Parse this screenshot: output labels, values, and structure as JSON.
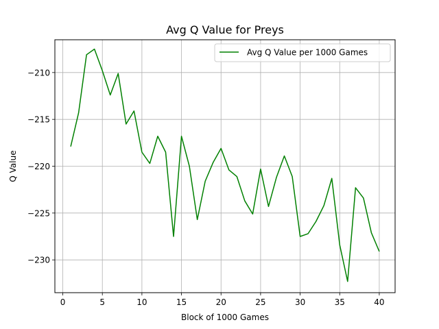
{
  "chart_data": {
    "type": "line",
    "title": "Avg Q Value for Preys",
    "xlabel": "Block of 1000 Games",
    "ylabel": "Q Value",
    "xlim": [
      -1,
      42
    ],
    "ylim": [
      -233.5,
      -206.5
    ],
    "xticks": [
      0,
      5,
      10,
      15,
      20,
      25,
      30,
      35,
      40
    ],
    "yticks": [
      -230,
      -225,
      -220,
      -215,
      -210
    ],
    "ytick_labels": [
      "−230",
      "−225",
      "−220",
      "−215",
      "−210"
    ],
    "grid": true,
    "legend_position": "top-right",
    "series": [
      {
        "name": "Avg Q Value per 1000 Games",
        "color": "#008000",
        "x": [
          1,
          2,
          3,
          4,
          5,
          6,
          7,
          8,
          9,
          10,
          11,
          12,
          13,
          14,
          15,
          16,
          17,
          18,
          19,
          20,
          21,
          22,
          23,
          24,
          25,
          26,
          27,
          28,
          29,
          30,
          31,
          32,
          33,
          34,
          35,
          36,
          37,
          38,
          39,
          40
        ],
        "y": [
          -217.9,
          -214.3,
          -208.1,
          -207.5,
          -209.8,
          -212.4,
          -210.1,
          -215.5,
          -214.1,
          -218.5,
          -219.7,
          -216.8,
          -218.5,
          -227.5,
          -216.8,
          -220.0,
          -225.7,
          -221.6,
          -219.6,
          -218.1,
          -220.4,
          -221.1,
          -223.7,
          -225.1,
          -220.3,
          -224.3,
          -221.2,
          -218.9,
          -221.1,
          -227.5,
          -227.2,
          -225.9,
          -224.2,
          -221.3,
          -228.4,
          -232.3,
          -222.3,
          -223.4,
          -227.1,
          -229.1
        ]
      }
    ]
  }
}
